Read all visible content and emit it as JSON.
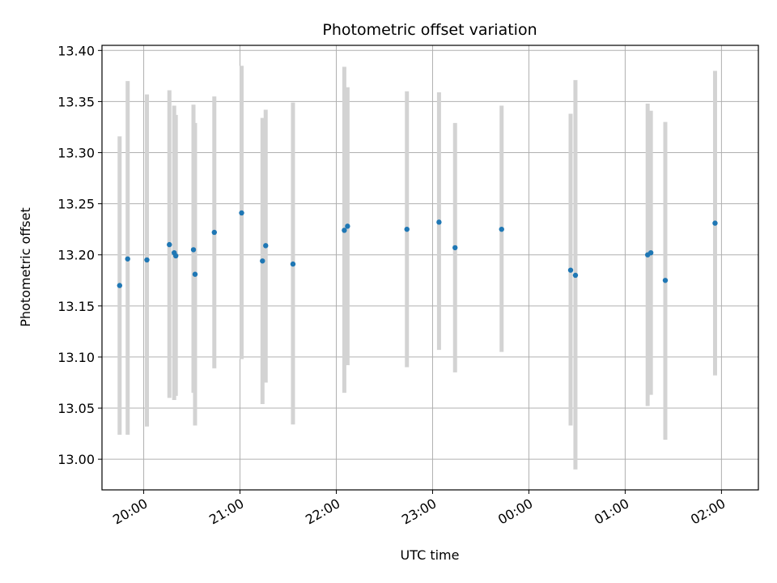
{
  "chart_data": {
    "type": "scatter",
    "title": "Photometric offset variation",
    "xlabel": "UTC time",
    "ylabel": "Photometric offset",
    "x_is_time": true,
    "xlim": [
      "19:34",
      "02:23"
    ],
    "ylim": [
      12.97,
      13.405
    ],
    "x_ticks": [
      "20:00",
      "21:00",
      "22:00",
      "23:00",
      "00:00",
      "01:00",
      "02:00"
    ],
    "y_ticks": [
      "13.00",
      "13.05",
      "13.10",
      "13.15",
      "13.20",
      "13.25",
      "13.30",
      "13.35",
      "13.40"
    ],
    "grid": true,
    "point_color": "#1f77b4",
    "errorbar_color": "#d3d3d3",
    "points": [
      {
        "x": "19:45",
        "y": 13.17,
        "lo": 13.024,
        "hi": 13.316
      },
      {
        "x": "19:50",
        "y": 13.196,
        "lo": 13.024,
        "hi": 13.37
      },
      {
        "x": "20:02",
        "y": 13.195,
        "lo": 13.032,
        "hi": 13.357
      },
      {
        "x": "20:16",
        "y": 13.21,
        "lo": 13.06,
        "hi": 13.361
      },
      {
        "x": "20:19",
        "y": 13.202,
        "lo": 13.058,
        "hi": 13.346
      },
      {
        "x": "20:20",
        "y": 13.199,
        "lo": 13.062,
        "hi": 13.337
      },
      {
        "x": "20:31",
        "y": 13.205,
        "lo": 13.065,
        "hi": 13.347
      },
      {
        "x": "20:32",
        "y": 13.181,
        "lo": 13.033,
        "hi": 13.329
      },
      {
        "x": "20:44",
        "y": 13.222,
        "lo": 13.089,
        "hi": 13.355
      },
      {
        "x": "21:01",
        "y": 13.241,
        "lo": 13.098,
        "hi": 13.385
      },
      {
        "x": "21:14",
        "y": 13.194,
        "lo": 13.054,
        "hi": 13.334
      },
      {
        "x": "21:16",
        "y": 13.209,
        "lo": 13.075,
        "hi": 13.342
      },
      {
        "x": "21:33",
        "y": 13.191,
        "lo": 13.034,
        "hi": 13.349
      },
      {
        "x": "22:05",
        "y": 13.224,
        "lo": 13.065,
        "hi": 13.384
      },
      {
        "x": "22:07",
        "y": 13.228,
        "lo": 13.092,
        "hi": 13.364
      },
      {
        "x": "22:44",
        "y": 13.225,
        "lo": 13.09,
        "hi": 13.36
      },
      {
        "x": "23:04",
        "y": 13.232,
        "lo": 13.107,
        "hi": 13.359
      },
      {
        "x": "23:14",
        "y": 13.207,
        "lo": 13.085,
        "hi": 13.329
      },
      {
        "x": "23:43",
        "y": 13.225,
        "lo": 13.105,
        "hi": 13.346
      },
      {
        "x": "00:26",
        "y": 13.185,
        "lo": 13.033,
        "hi": 13.338
      },
      {
        "x": "00:29",
        "y": 13.18,
        "lo": 12.99,
        "hi": 13.371
      },
      {
        "x": "01:14",
        "y": 13.2,
        "lo": 13.052,
        "hi": 13.348
      },
      {
        "x": "01:16",
        "y": 13.202,
        "lo": 13.063,
        "hi": 13.341
      },
      {
        "x": "01:25",
        "y": 13.175,
        "lo": 13.019,
        "hi": 13.33
      },
      {
        "x": "01:56",
        "y": 13.231,
        "lo": 13.082,
        "hi": 13.38
      }
    ]
  }
}
